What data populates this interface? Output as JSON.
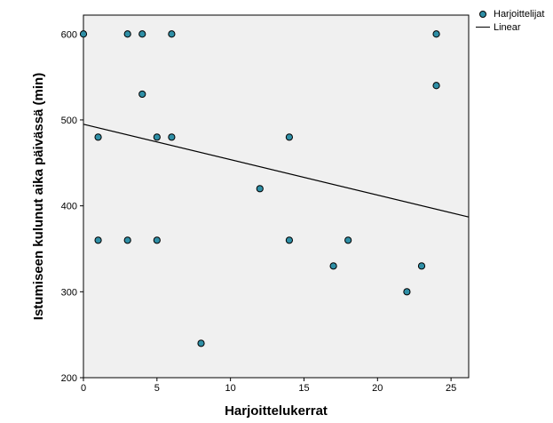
{
  "chart_data": {
    "type": "scatter",
    "xlabel": "Harjoittelukerrat",
    "ylabel": "Istumiseen kulunut aika päivässä (min)",
    "xlim": [
      0,
      26.2
    ],
    "ylim": [
      200,
      622
    ],
    "xticks": [
      0,
      5,
      10,
      15,
      20,
      25
    ],
    "yticks": [
      200,
      300,
      400,
      500,
      600
    ],
    "grid": false,
    "legend_position": "top-right outside plot",
    "background_color": "#f0f0f0",
    "series": [
      {
        "name": "Harjoittelijat",
        "kind": "points",
        "color": "#2f8fa6",
        "points": [
          {
            "x": 0,
            "y": 600
          },
          {
            "x": 3,
            "y": 600
          },
          {
            "x": 4,
            "y": 600
          },
          {
            "x": 6,
            "y": 600
          },
          {
            "x": 24,
            "y": 600
          },
          {
            "x": 24,
            "y": 540
          },
          {
            "x": 4,
            "y": 530
          },
          {
            "x": 1,
            "y": 480
          },
          {
            "x": 5,
            "y": 480
          },
          {
            "x": 6,
            "y": 480
          },
          {
            "x": 14,
            "y": 480
          },
          {
            "x": 12,
            "y": 420
          },
          {
            "x": 1,
            "y": 360
          },
          {
            "x": 3,
            "y": 360
          },
          {
            "x": 5,
            "y": 360
          },
          {
            "x": 14,
            "y": 360
          },
          {
            "x": 18,
            "y": 360
          },
          {
            "x": 17,
            "y": 330
          },
          {
            "x": 23,
            "y": 330
          },
          {
            "x": 22,
            "y": 300
          },
          {
            "x": 8,
            "y": 240
          }
        ]
      },
      {
        "name": "Linear",
        "kind": "line",
        "color": "#000000",
        "points": [
          {
            "x": 0,
            "y": 495
          },
          {
            "x": 26.2,
            "y": 387
          }
        ]
      }
    ]
  }
}
